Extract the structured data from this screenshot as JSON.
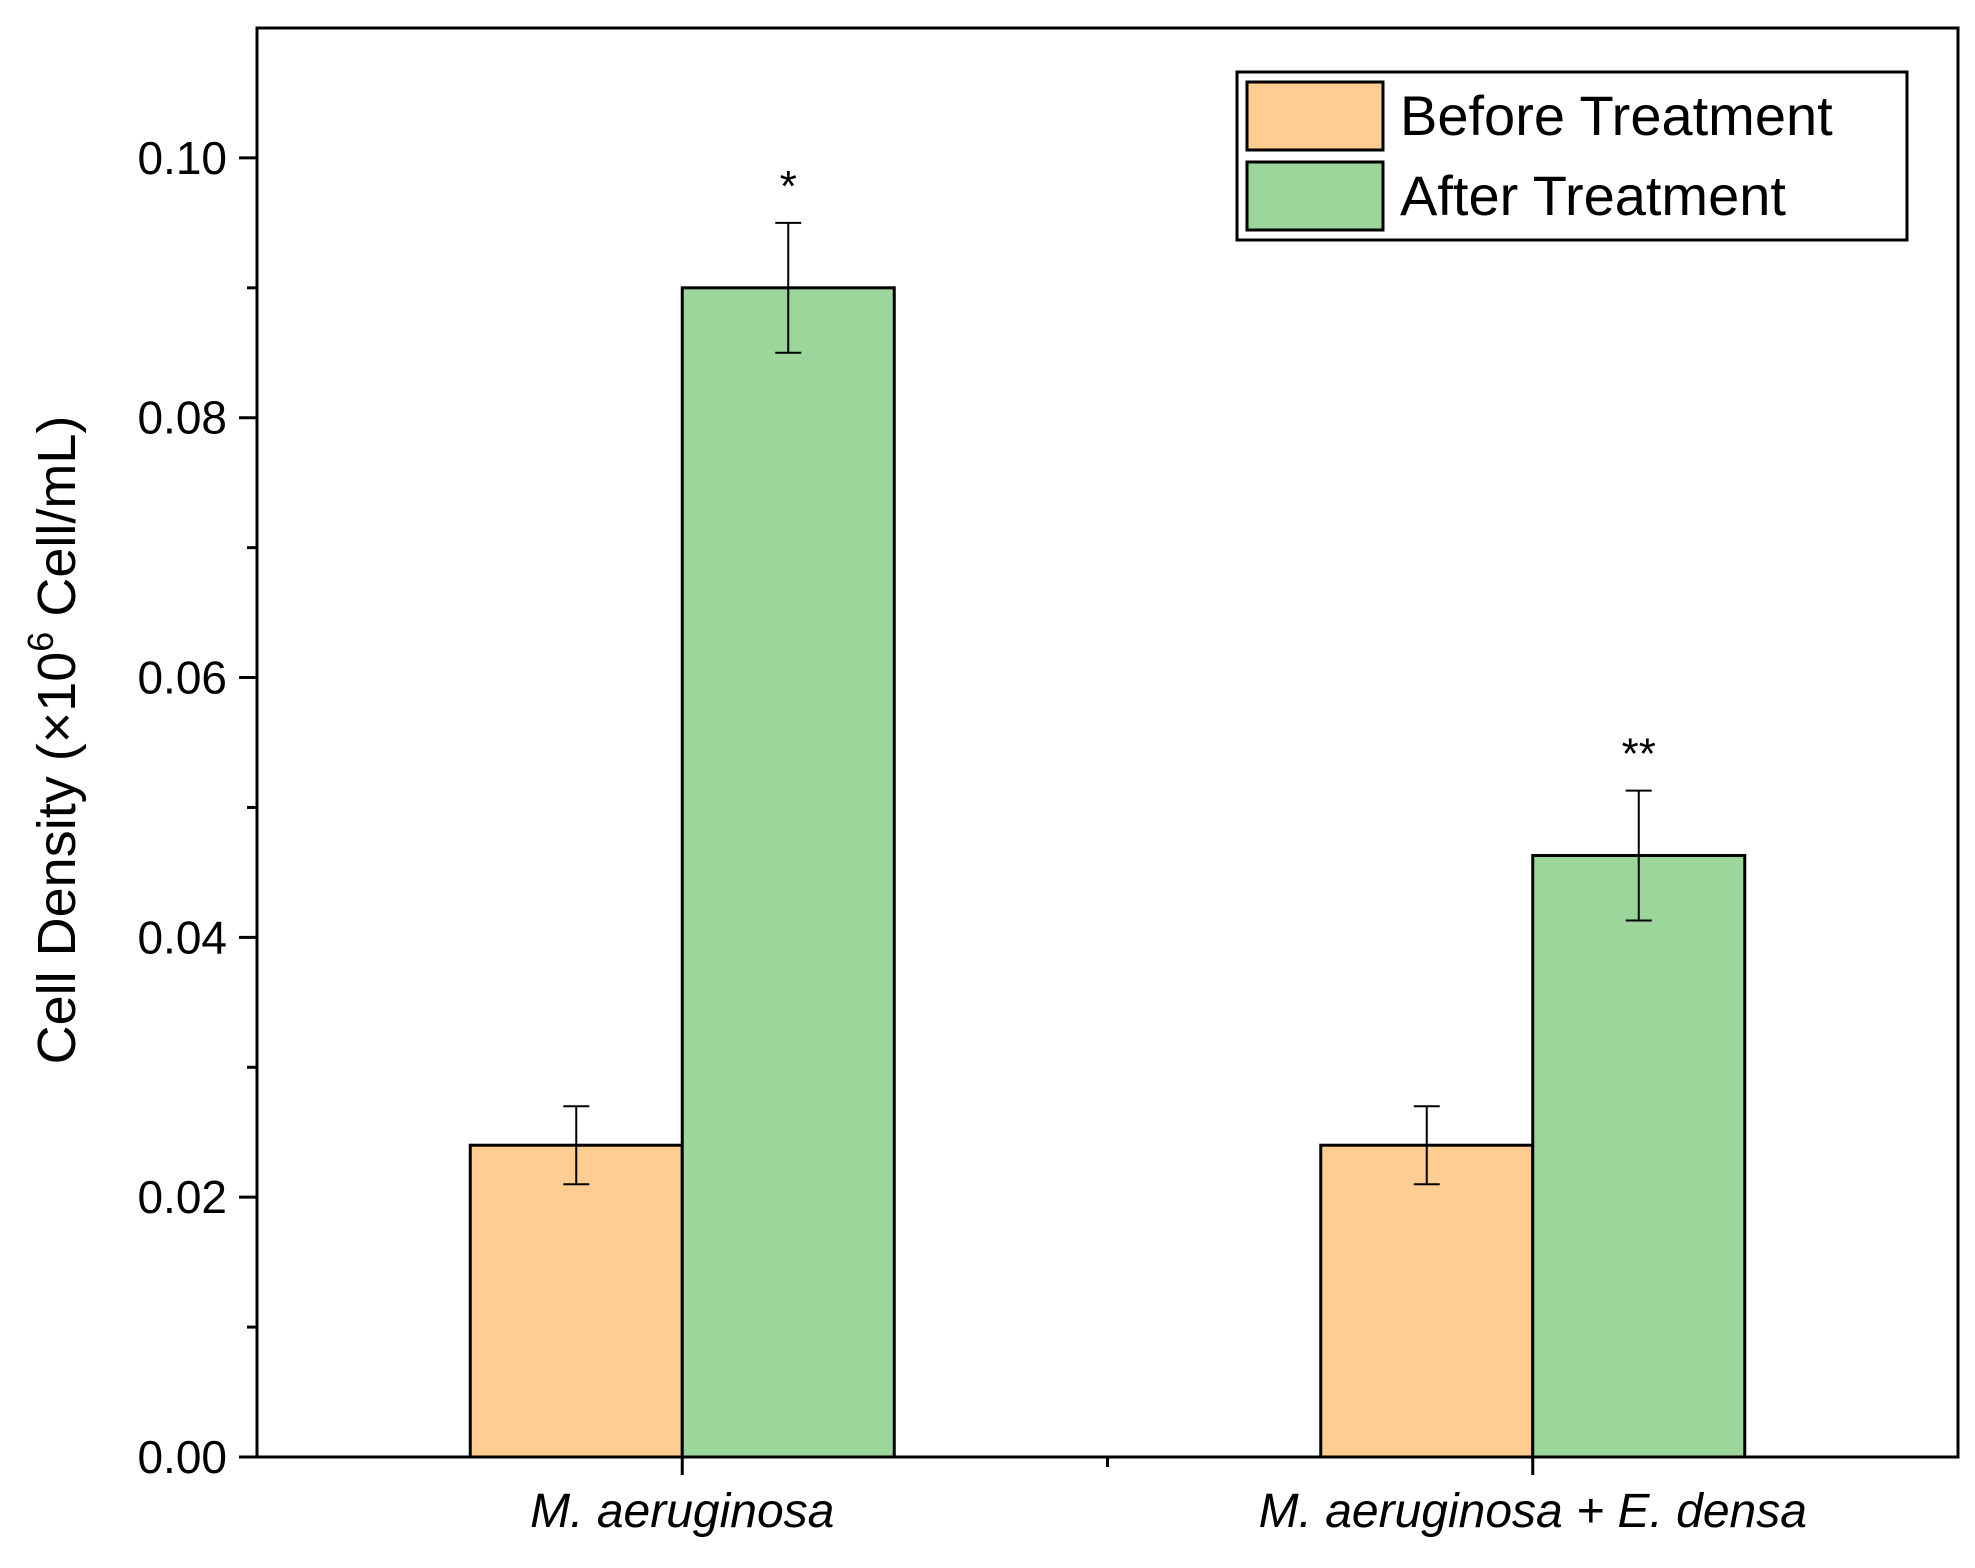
{
  "chart_data": {
    "type": "bar",
    "categories": [
      "M. aeruginosa",
      "M. aeruginosa + E. densa"
    ],
    "series": [
      {
        "name": "Before Treatment",
        "color": "#FFCC91",
        "values": [
          0.024,
          0.024
        ],
        "errors": [
          0.003,
          0.003
        ]
      },
      {
        "name": "After Treatment",
        "color": "#9DD69A",
        "values": [
          0.09,
          0.0463
        ],
        "errors": [
          0.005,
          0.005
        ]
      }
    ],
    "significance": [
      "*",
      "**"
    ],
    "ylabel_main": "Cell Density (×10",
    "ylabel_sup": "6",
    "ylabel_tail": " Cell/mL)",
    "ylim": [
      0,
      0.11
    ],
    "yticks": [
      "0.00",
      "0.02",
      "0.04",
      "0.06",
      "0.08",
      "0.10"
    ],
    "legend_position": "top-right",
    "grid": false
  }
}
